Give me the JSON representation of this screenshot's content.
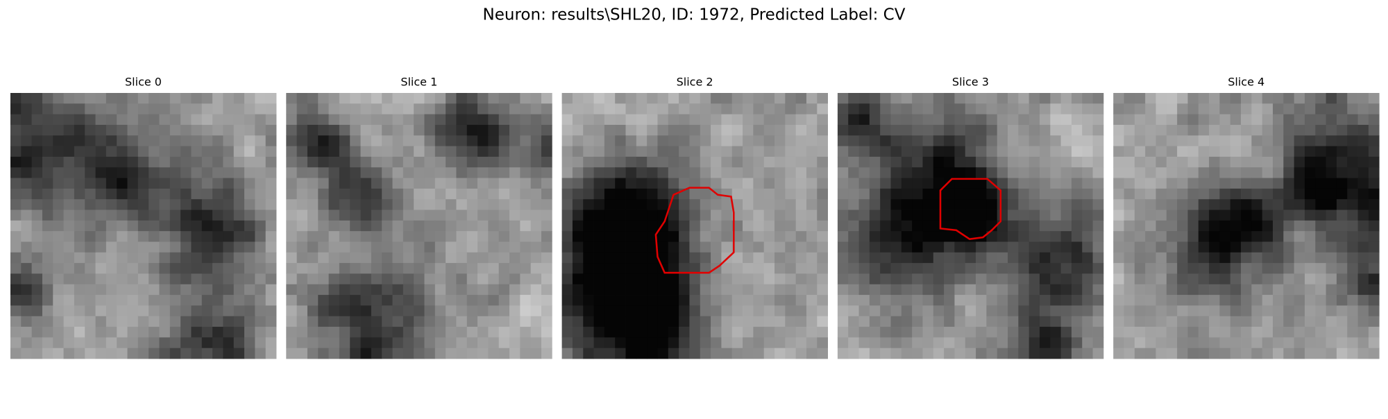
{
  "title": "Neuron: results\\SHL20, ID: 1972, Predicted Label: CV",
  "panels": [
    {
      "title": "Slice 0"
    },
    {
      "title": "Slice 1"
    },
    {
      "title": "Slice 2"
    },
    {
      "title": "Slice 3"
    },
    {
      "title": "Slice 4"
    }
  ]
}
